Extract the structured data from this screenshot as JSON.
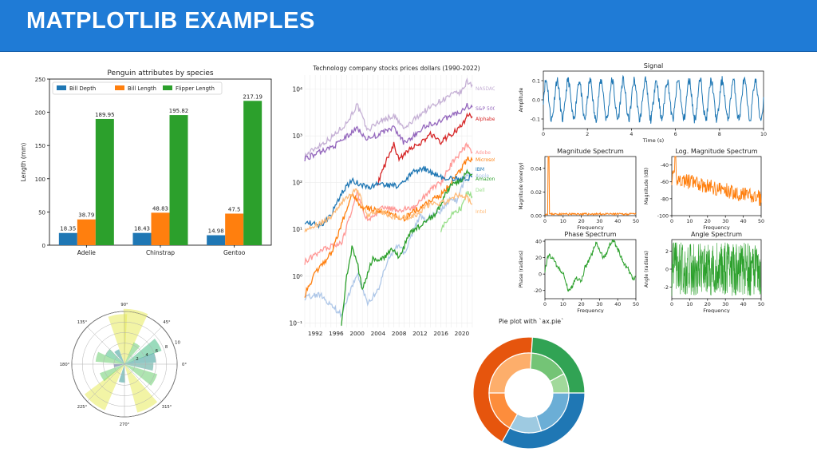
{
  "header": {
    "title": "MATPLOTLIB EXAMPLES"
  },
  "colors": {
    "banner": "#1f7bd6",
    "blue": "#1f77b4",
    "orange": "#ff7f0e",
    "green": "#2ca02c"
  },
  "chart_data": [
    {
      "type": "bar",
      "title": "Penguin attributes by species",
      "ylabel": "Length (mm)",
      "categories": [
        "Adelie",
        "Chinstrap",
        "Gentoo"
      ],
      "ylim": [
        0,
        250
      ],
      "yticks": [
        "0",
        "50",
        "100",
        "150",
        "200",
        "250"
      ],
      "legend": "top-left",
      "series": [
        {
          "name": "Bill Depth",
          "color": "#1f77b4",
          "values": [
            18.35,
            18.43,
            14.98
          ],
          "labels": [
            "18.35",
            "18.43",
            "14.98"
          ]
        },
        {
          "name": "Bill Length",
          "color": "#ff7f0e",
          "values": [
            38.79,
            48.83,
            47.5
          ],
          "labels": [
            "38.79",
            "48.83",
            "47.5"
          ]
        },
        {
          "name": "Flipper Length",
          "color": "#2ca02c",
          "values": [
            189.95,
            195.82,
            217.19
          ],
          "labels": [
            "189.95",
            "195.82",
            "217.19"
          ]
        }
      ]
    },
    {
      "type": "line",
      "title": "Technology company stocks prices dollars (1990-2022)",
      "yscale": "log",
      "xlim": [
        1990,
        2022
      ],
      "ylim": [
        0.08,
        20000
      ],
      "xticks": [
        "1992",
        "1996",
        "2000",
        "2004",
        "2008",
        "2012",
        "2016",
        "2020"
      ],
      "yticks": [
        "10⁻¹",
        "10⁰",
        "10¹",
        "10²",
        "10³",
        "10⁴"
      ],
      "grid": true,
      "series": [
        {
          "name": "NASDAQ",
          "color": "#c5b0d5",
          "points": [
            [
              1990,
              370
            ],
            [
              1992,
              550
            ],
            [
              1995,
              900
            ],
            [
              1998,
              1900
            ],
            [
              2000,
              4600
            ],
            [
              2002,
              1300
            ],
            [
              2004,
              2000
            ],
            [
              2007,
              2700
            ],
            [
              2009,
              1400
            ],
            [
              2012,
              2900
            ],
            [
              2015,
              4900
            ],
            [
              2018,
              7500
            ],
            [
              2020,
              8800
            ],
            [
              2021,
              14500
            ],
            [
              2022,
              12500
            ]
          ]
        },
        {
          "name": "S&P 500",
          "color": "#9467bd",
          "points": [
            [
              1990,
              330
            ],
            [
              1993,
              450
            ],
            [
              1996,
              650
            ],
            [
              2000,
              1450
            ],
            [
              2002,
              850
            ],
            [
              2007,
              1500
            ],
            [
              2009,
              700
            ],
            [
              2013,
              1600
            ],
            [
              2016,
              2100
            ],
            [
              2018,
              2800
            ],
            [
              2020,
              3300
            ],
            [
              2021,
              4400
            ],
            [
              2022,
              4100
            ]
          ]
        },
        {
          "name": "Alphabet",
          "color": "#d62728",
          "points": [
            [
              2004,
              100
            ],
            [
              2006,
              380
            ],
            [
              2007,
              650
            ],
            [
              2008,
              300
            ],
            [
              2010,
              550
            ],
            [
              2012,
              650
            ],
            [
              2014,
              1100
            ],
            [
              2016,
              750
            ],
            [
              2018,
              1100
            ],
            [
              2020,
              1600
            ],
            [
              2021,
              2800
            ],
            [
              2022,
              2600
            ]
          ]
        },
        {
          "name": "Adobe",
          "color": "#ff9896",
          "points": [
            [
              1990,
              2
            ],
            [
              1994,
              4
            ],
            [
              1997,
              5
            ],
            [
              2000,
              60
            ],
            [
              2002,
              15
            ],
            [
              2005,
              30
            ],
            [
              2008,
              25
            ],
            [
              2011,
              30
            ],
            [
              2014,
              70
            ],
            [
              2016,
              100
            ],
            [
              2018,
              250
            ],
            [
              2021,
              650
            ],
            [
              2022,
              450
            ]
          ]
        },
        {
          "name": "Microsoft",
          "color": "#ff7f0e",
          "points": [
            [
              1990,
              0.4
            ],
            [
              1992,
              1.2
            ],
            [
              1995,
              3
            ],
            [
              1999,
              55
            ],
            [
              2001,
              30
            ],
            [
              2004,
              25
            ],
            [
              2009,
              17
            ],
            [
              2011,
              25
            ],
            [
              2014,
              40
            ],
            [
              2016,
              55
            ],
            [
              2018,
              100
            ],
            [
              2020,
              200
            ],
            [
              2021,
              330
            ],
            [
              2022,
              300
            ]
          ]
        },
        {
          "name": "IBM",
          "color": "#1f77b4",
          "points": [
            [
              1990,
              15
            ],
            [
              1993,
              12
            ],
            [
              1995,
              20
            ],
            [
              1997,
              60
            ],
            [
              1999,
              110
            ],
            [
              2002,
              80
            ],
            [
              2004,
              90
            ],
            [
              2008,
              85
            ],
            [
              2011,
              180
            ],
            [
              2013,
              195
            ],
            [
              2016,
              130
            ],
            [
              2018,
              125
            ],
            [
              2020,
              115
            ],
            [
              2022,
              135
            ]
          ]
        },
        {
          "name": "Apple",
          "color": "#aec7e8",
          "points": [
            [
              1990,
              0.35
            ],
            [
              1993,
              0.4
            ],
            [
              1997,
              0.15
            ],
            [
              1999,
              0.6
            ],
            [
              2000,
              1.2
            ],
            [
              2002,
              0.25
            ],
            [
              2004,
              0.5
            ],
            [
              2006,
              2.5
            ],
            [
              2008,
              5
            ],
            [
              2009,
              3
            ],
            [
              2012,
              20
            ],
            [
              2013,
              16
            ],
            [
              2016,
              25
            ],
            [
              2018,
              50
            ],
            [
              2019,
              40
            ],
            [
              2020,
              80
            ],
            [
              2021,
              150
            ],
            [
              2022,
              160
            ]
          ]
        },
        {
          "name": "Amazon",
          "color": "#2ca02c",
          "points": [
            [
              1997,
              0.1
            ],
            [
              1998,
              1
            ],
            [
              1999,
              4
            ],
            [
              2000,
              2
            ],
            [
              2001,
              0.5
            ],
            [
              2003,
              2.5
            ],
            [
              2004,
              2
            ],
            [
              2007,
              4
            ],
            [
              2008,
              2.5
            ],
            [
              2010,
              8
            ],
            [
              2013,
              15
            ],
            [
              2015,
              20
            ],
            [
              2017,
              60
            ],
            [
              2018,
              90
            ],
            [
              2020,
              110
            ],
            [
              2021,
              170
            ],
            [
              2022,
              150
            ]
          ]
        },
        {
          "name": "Dell",
          "color": "#98df8a",
          "points": [
            [
              2016,
              10
            ],
            [
              2017,
              15
            ],
            [
              2018,
              20
            ],
            [
              2019,
              25
            ],
            [
              2020,
              30
            ],
            [
              2021,
              60
            ],
            [
              2022,
              50
            ]
          ]
        },
        {
          "name": "Intel",
          "color": "#ffbb78",
          "points": [
            [
              1990,
              10
            ],
            [
              1992,
              12
            ],
            [
              1995,
              18
            ],
            [
              1998,
              50
            ],
            [
              2000,
              70
            ],
            [
              2002,
              20
            ],
            [
              2004,
              25
            ],
            [
              2008,
              17
            ],
            [
              2011,
              20
            ],
            [
              2014,
              35
            ],
            [
              2017,
              38
            ],
            [
              2018,
              50
            ],
            [
              2020,
              55
            ],
            [
              2021,
              50
            ],
            [
              2022,
              35
            ]
          ]
        }
      ]
    },
    {
      "type": "line",
      "title": "Signal",
      "xlabel": "Time (s)",
      "ylabel": "Amplitude",
      "xlim": [
        0,
        10
      ],
      "ylim": [
        -0.15,
        0.15
      ],
      "xticks": [
        "0",
        "2",
        "4",
        "6",
        "8",
        "10"
      ],
      "yticks": [
        "-0.1",
        "0.0",
        "0.1"
      ],
      "color": "#1f77b4",
      "frequency_hz": 2,
      "amplitude": 0.1
    },
    {
      "type": "line",
      "title": "Magnitude Spectrum",
      "xlabel": "Frequency",
      "ylabel": "Magnitude (energy)",
      "xlim": [
        0,
        50
      ],
      "ylim": [
        0,
        0.05
      ],
      "xticks": [
        "0",
        "10",
        "20",
        "30",
        "40",
        "50"
      ],
      "yticks": [
        "0.00",
        "0.02",
        "0.04"
      ],
      "color": "#ff7f0e",
      "peak": {
        "x": 2,
        "y": 0.05
      }
    },
    {
      "type": "line",
      "title": "Log. Magnitude Spectrum",
      "xlabel": "Frequency",
      "ylabel": "Magnitude (dB)",
      "xlim": [
        0,
        50
      ],
      "ylim": [
        -100,
        -30
      ],
      "xticks": [
        "0",
        "10",
        "20",
        "30",
        "40",
        "50"
      ],
      "yticks": [
        "-40",
        "-60",
        "-80",
        "-100"
      ],
      "color": "#ff7f0e",
      "peak": {
        "x": 2,
        "y": -26
      }
    },
    {
      "type": "line",
      "title": "Phase Spectrum",
      "xlabel": "Frequency",
      "ylabel": "Phase (radians)",
      "xlim": [
        0,
        50
      ],
      "ylim": [
        -30,
        42
      ],
      "xticks": [
        "0",
        "10",
        "20",
        "30",
        "40",
        "50"
      ],
      "yticks": [
        "40",
        "20",
        "0",
        "-20"
      ],
      "color": "#2ca02c",
      "points": [
        [
          0,
          5
        ],
        [
          2,
          25
        ],
        [
          4,
          20
        ],
        [
          6,
          12
        ],
        [
          8,
          5
        ],
        [
          10,
          0
        ],
        [
          12,
          -12
        ],
        [
          13,
          -22
        ],
        [
          15,
          -15
        ],
        [
          17,
          -5
        ],
        [
          20,
          -10
        ],
        [
          22,
          8
        ],
        [
          24,
          15
        ],
        [
          26,
          25
        ],
        [
          28,
          38
        ],
        [
          30,
          30
        ],
        [
          32,
          20
        ],
        [
          34,
          24
        ],
        [
          36,
          38
        ],
        [
          38,
          40
        ],
        [
          40,
          30
        ],
        [
          42,
          20
        ],
        [
          44,
          10
        ],
        [
          46,
          5
        ],
        [
          48,
          -5
        ],
        [
          50,
          -5
        ]
      ]
    },
    {
      "type": "line",
      "title": "Angle Spectrum",
      "xlabel": "Frequency",
      "ylabel": "Angle (radians)",
      "xlim": [
        0,
        50
      ],
      "ylim": [
        -3.3,
        3.3
      ],
      "xticks": [
        "0",
        "10",
        "20",
        "30",
        "40",
        "50"
      ],
      "yticks": [
        "2",
        "0",
        "-2"
      ],
      "color": "#2ca02c"
    },
    {
      "type": "bar",
      "subtype": "polar",
      "angle_ticks": [
        "90°",
        "45°",
        "0°",
        "315°",
        "270°",
        "225°",
        "180°",
        "135°"
      ],
      "radial_ticks": [
        "2",
        "4",
        "6",
        "8",
        "10"
      ],
      "rmax": 10,
      "bars": [
        {
          "theta": 98,
          "r": 9.5,
          "width": 22,
          "color": "#e6ea4c"
        },
        {
          "theta": 78,
          "r": 10.5,
          "width": 26,
          "color": "#e6ea4c"
        },
        {
          "theta": 58,
          "r": 4.5,
          "width": 18,
          "color": "#5ec962"
        },
        {
          "theta": 30,
          "r": 7.5,
          "width": 20,
          "color": "#35b779"
        },
        {
          "theta": 12,
          "r": 6,
          "width": 18,
          "color": "#21918c"
        },
        {
          "theta": -5,
          "r": 5.5,
          "width": 16,
          "color": "#3b9c8c"
        },
        {
          "theta": -28,
          "r": 6.5,
          "width": 22,
          "color": "#5ec962"
        },
        {
          "theta": -62,
          "r": 9.5,
          "width": 26,
          "color": "#e6ea4c"
        },
        {
          "theta": -98,
          "r": 3.5,
          "width": 20,
          "color": "#21918c"
        },
        {
          "theta": -128,
          "r": 9.5,
          "width": 30,
          "color": "#e6ea4c"
        },
        {
          "theta": -150,
          "r": 5,
          "width": 20,
          "color": "#5ec962"
        },
        {
          "theta": -172,
          "r": 2,
          "width": 18,
          "color": "#3b528b"
        },
        {
          "theta": 165,
          "r": 5.5,
          "width": 20,
          "color": "#5ec962"
        },
        {
          "theta": 145,
          "r": 4,
          "width": 22,
          "color": "#35b779"
        },
        {
          "theta": 120,
          "r": 3,
          "width": 20,
          "color": "#21918c"
        }
      ]
    },
    {
      "type": "pie",
      "subtype": "nested",
      "title": "Pie plot with `ax.pie`",
      "outer": [
        {
          "value": 33,
          "color": "#1f77b4"
        },
        {
          "value": 43,
          "color": "#e6550d"
        },
        {
          "value": 24,
          "color": "#31a354"
        }
      ],
      "inner": [
        {
          "value": 20,
          "color": "#6baed6"
        },
        {
          "value": 13,
          "color": "#9ecae1"
        },
        {
          "value": 17,
          "color": "#fd8d3c"
        },
        {
          "value": 26,
          "color": "#fdae6b"
        },
        {
          "value": 16,
          "color": "#74c476"
        },
        {
          "value": 8,
          "color": "#a1d99b"
        }
      ]
    }
  ]
}
